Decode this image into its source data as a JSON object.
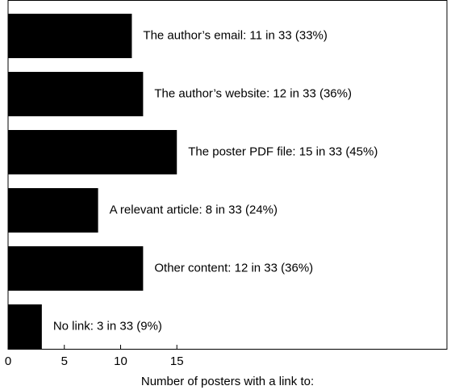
{
  "chart_data": {
    "type": "hbar",
    "values": [
      11,
      12,
      15,
      8,
      12,
      3
    ],
    "value_labels": [
      "The author’s email: 11 in 33 (33%)",
      "The author’s website: 12 in 33 (36%)",
      "The poster PDF file: 15 in 33 (45%)",
      "A relevant article: 8 in 33 (24%)",
      "Other content: 12 in 33 (36%)",
      "No link: 3 in 33 (9%)"
    ],
    "color": "#000000",
    "xlim": [
      0,
      39
    ],
    "xticks": [
      0,
      5,
      10,
      15
    ],
    "x_label": "Number of posters with a link to:"
  }
}
